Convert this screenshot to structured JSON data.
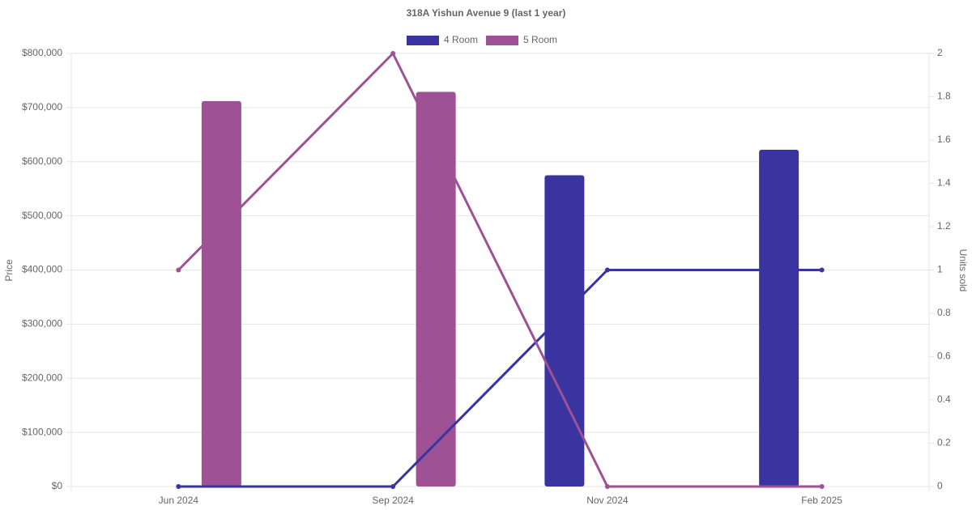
{
  "chart_data": {
    "type": "bar-line",
    "title": "318A Yishun Avenue 9 (last 1 year)",
    "y_label": "Price",
    "y2_label": "Units sold",
    "categories": [
      "Jun 2024",
      "Sep 2024",
      "Nov 2024",
      "Feb 2025"
    ],
    "series": [
      {
        "name": "4 Room",
        "color": "#3934a0",
        "values": [
          null,
          null,
          575000,
          622000
        ],
        "y2_values": [
          0,
          0,
          1,
          1
        ]
      },
      {
        "name": "5 Room",
        "color": "#9e5194",
        "values": [
          712000,
          729000,
          null,
          null
        ],
        "y2_values": [
          1,
          2,
          0,
          0
        ]
      }
    ],
    "ylim": [
      0,
      800000
    ],
    "yticks": [
      {
        "value": 0,
        "label": "$0"
      },
      {
        "value": 100000,
        "label": "$100,000"
      },
      {
        "value": 200000,
        "label": "$200,000"
      },
      {
        "value": 300000,
        "label": "$300,000"
      },
      {
        "value": 400000,
        "label": "$400,000"
      },
      {
        "value": 500000,
        "label": "$500,000"
      },
      {
        "value": 600000,
        "label": "$600,000"
      },
      {
        "value": 700000,
        "label": "$700,000"
      },
      {
        "value": 800000,
        "label": "$800,000"
      }
    ],
    "y2lim": [
      0,
      2
    ],
    "y2ticks": [
      0,
      0.2,
      0.4,
      0.6,
      0.8,
      1,
      1.2,
      1.4,
      1.6,
      1.8,
      2
    ],
    "grid": true,
    "legend": "top"
  }
}
